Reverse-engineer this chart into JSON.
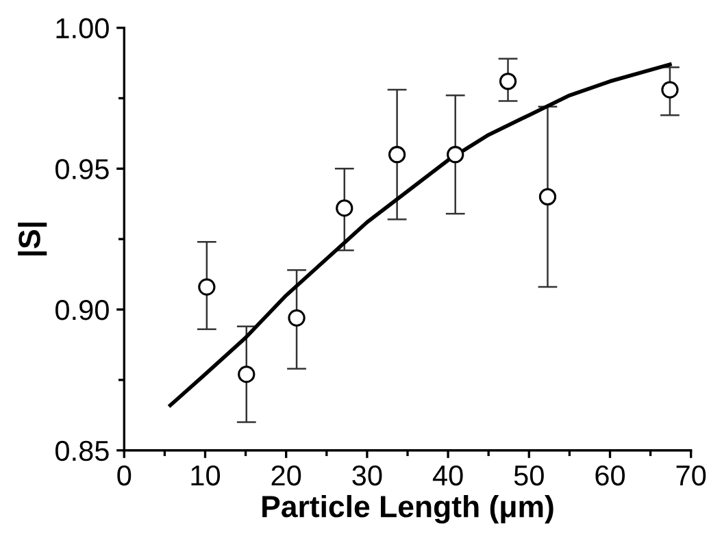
{
  "chart_data": {
    "type": "scatter",
    "xlabel": "Particle Length (μm)",
    "ylabel": "|S|",
    "xlim": [
      0,
      70
    ],
    "ylim": [
      0.85,
      1.0
    ],
    "xticks": [
      0,
      {
        "value": 5,
        "label": null
      },
      10,
      {
        "value": 15,
        "label": null
      },
      20,
      {
        "value": 25,
        "label": null
      },
      30,
      {
        "value": 35,
        "label": null
      },
      40,
      {
        "value": 45,
        "label": null
      },
      50,
      {
        "value": 55,
        "label": null
      },
      60,
      {
        "value": 65,
        "label": null
      },
      70
    ],
    "yticks": [
      {
        "value": 0.85,
        "label": "0.85"
      },
      {
        "value": 0.875,
        "label": null
      },
      {
        "value": 0.9,
        "label": "0.90"
      },
      {
        "value": 0.925,
        "label": null
      },
      {
        "value": 0.95,
        "label": "0.95"
      },
      {
        "value": 0.975,
        "label": null
      },
      {
        "value": 1.0,
        "label": "1.00"
      }
    ],
    "grid": false,
    "legend": false,
    "series": [
      {
        "color": "#000000",
        "marker": "circle",
        "x": [
          10.2,
          15.1,
          21.3,
          27.2,
          33.7,
          40.9,
          47.4,
          52.3,
          67.4
        ],
        "values": [
          0.908,
          0.877,
          0.897,
          0.936,
          0.955,
          0.955,
          0.981,
          0.94,
          0.978
        ],
        "errors": [
          [
            0.893,
            0.924
          ],
          [
            0.86,
            0.894
          ],
          [
            0.879,
            0.914
          ],
          [
            0.921,
            0.95
          ],
          [
            0.932,
            0.978
          ],
          [
            0.934,
            0.976
          ],
          [
            0.974,
            0.989
          ],
          [
            0.908,
            0.972
          ],
          [
            0.969,
            0.986
          ]
        ]
      },
      {
        "type": "line",
        "color": "#000000",
        "marker": "none",
        "line_style": "solid",
        "x": [
          5.7,
          10,
          15,
          20,
          25,
          30,
          35,
          40,
          45,
          50,
          55,
          60,
          67.4
        ],
        "values": [
          0.866,
          0.877,
          0.89,
          0.905,
          0.918,
          0.931,
          0.942,
          0.953,
          0.962,
          0.969,
          0.976,
          0.981,
          0.987
        ]
      }
    ]
  }
}
